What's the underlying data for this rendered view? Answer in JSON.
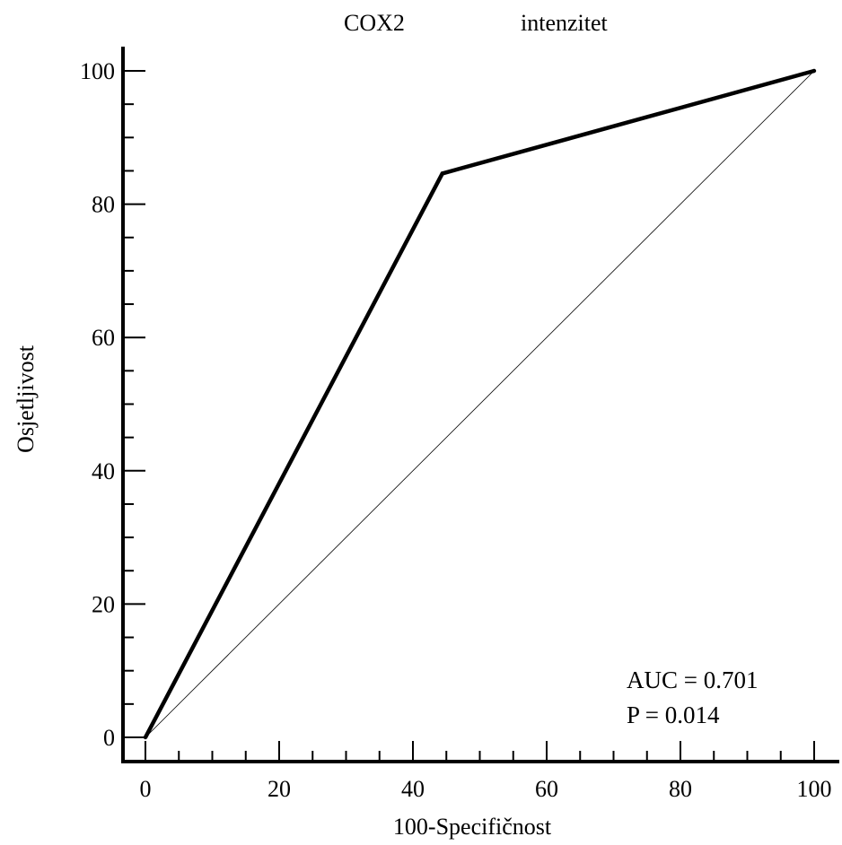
{
  "chart_data": {
    "type": "line",
    "title_parts": [
      "COX2",
      "intenzitet"
    ],
    "xlabel": "100-Specifičnost",
    "ylabel": "Osjetljivost",
    "xlim": [
      0,
      100
    ],
    "ylim": [
      0,
      100
    ],
    "x_ticks": [
      0,
      20,
      40,
      60,
      80,
      100
    ],
    "y_ticks": [
      0,
      20,
      40,
      60,
      80,
      100
    ],
    "series": [
      {
        "x": [
          0,
          44.4,
          100
        ],
        "y": [
          0,
          84.6,
          100
        ]
      }
    ],
    "reference_line": {
      "x": [
        0,
        100
      ],
      "y": [
        0,
        100
      ]
    },
    "annotations": [
      "AUC = 0.701",
      "P = 0.014"
    ],
    "grid": false
  }
}
